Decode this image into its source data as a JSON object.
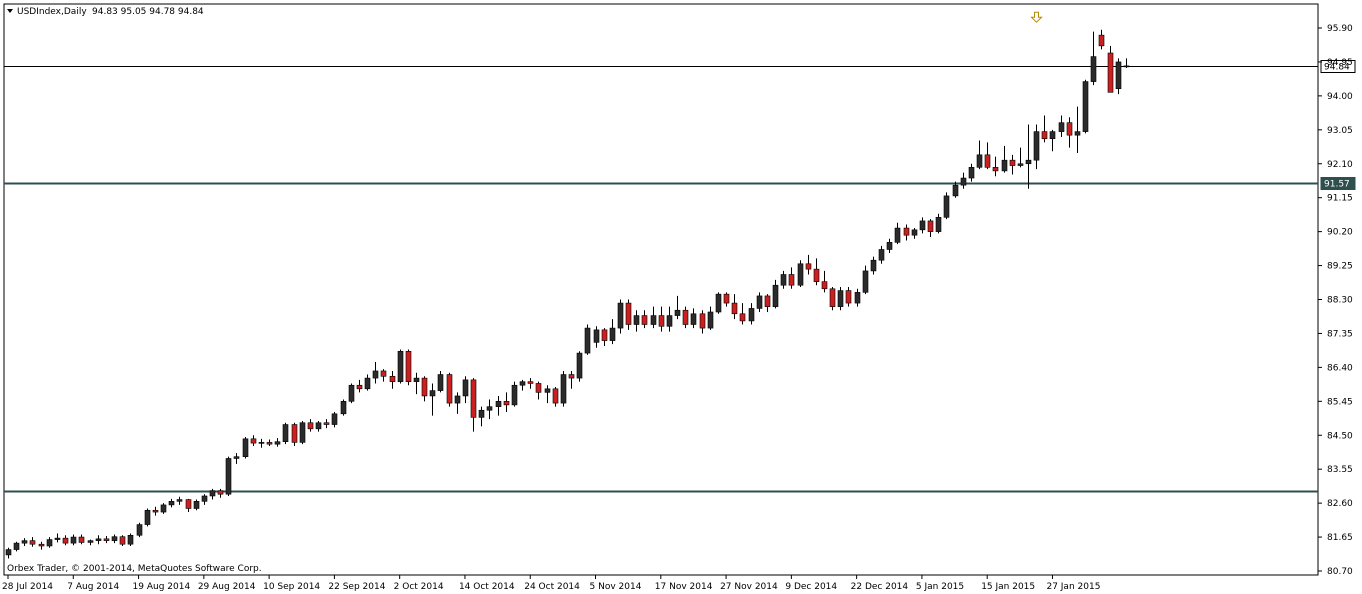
{
  "chart_data": {
    "type": "candlestick",
    "symbol_line": "USDIndex,Daily",
    "ohlc_header": "94.83 95.05 94.78 94.84",
    "copyright": "Orbex Trader, © 2001-2014, MetaQuotes Software Corp.",
    "y_axis": {
      "min": 80.7,
      "max": 96.2,
      "ticks": [
        "95.90",
        "94.95",
        "94.00",
        "93.05",
        "92.10",
        "91.15",
        "90.20",
        "89.25",
        "88.30",
        "87.35",
        "86.40",
        "85.45",
        "84.50",
        "83.55",
        "82.60",
        "81.65",
        "80.70"
      ]
    },
    "x_axis": {
      "labels": [
        {
          "label": "28 Jul 2014",
          "index": 0
        },
        {
          "label": "7 Aug 2014",
          "index": 8
        },
        {
          "label": "19 Aug 2014",
          "index": 16
        },
        {
          "label": "29 Aug 2014",
          "index": 24
        },
        {
          "label": "10 Sep 2014",
          "index": 32
        },
        {
          "label": "22 Sep 2014",
          "index": 40
        },
        {
          "label": "2 Oct 2014",
          "index": 48
        },
        {
          "label": "14 Oct 2014",
          "index": 56
        },
        {
          "label": "24 Oct 2014",
          "index": 64
        },
        {
          "label": "5 Nov 2014",
          "index": 72
        },
        {
          "label": "17 Nov 2014",
          "index": 80
        },
        {
          "label": "27 Nov 2014",
          "index": 88
        },
        {
          "label": "9 Dec 2014",
          "index": 96
        },
        {
          "label": "22 Dec 2014",
          "index": 104
        },
        {
          "label": "5 Jan 2015",
          "index": 112
        },
        {
          "label": "15 Jan 2015",
          "index": 120
        },
        {
          "label": "27 Jan 2015",
          "index": 128
        }
      ]
    },
    "horizontal_lines": [
      {
        "value": 94.84,
        "label": "94.84",
        "label_bg": "#ffffff",
        "label_fg": "#000000",
        "style": "thin"
      },
      {
        "value": 91.57,
        "label": "91.57",
        "label_bg": "#2f4f4f",
        "label_fg": "#ffffff",
        "style": "thick"
      },
      {
        "value": 82.93,
        "label": "",
        "style": "thick"
      }
    ],
    "arrow_marker": {
      "index": 126,
      "above_price": 95.95
    },
    "colors": {
      "bull": "#2b2b2b",
      "bear": "#cc1f1f",
      "wick": "#000000",
      "thin_line": "#000000",
      "thick_line": "#2f4f4f"
    },
    "candles": [
      [
        81.15,
        81.35,
        81.05,
        81.3
      ],
      [
        81.3,
        81.52,
        81.25,
        81.48
      ],
      [
        81.48,
        81.62,
        81.4,
        81.55
      ],
      [
        81.55,
        81.65,
        81.38,
        81.45
      ],
      [
        81.45,
        81.52,
        81.3,
        81.4
      ],
      [
        81.4,
        81.65,
        81.35,
        81.58
      ],
      [
        81.58,
        81.75,
        81.5,
        81.62
      ],
      [
        81.62,
        81.7,
        81.42,
        81.48
      ],
      [
        81.48,
        81.72,
        81.42,
        81.65
      ],
      [
        81.65,
        81.72,
        81.45,
        81.5
      ],
      [
        81.5,
        81.58,
        81.42,
        81.55
      ],
      [
        81.55,
        81.7,
        81.45,
        81.6
      ],
      [
        81.6,
        81.68,
        81.48,
        81.55
      ],
      [
        81.55,
        81.72,
        81.48,
        81.66
      ],
      [
        81.66,
        81.7,
        81.4,
        81.45
      ],
      [
        81.45,
        81.75,
        81.4,
        81.7
      ],
      [
        81.7,
        82.05,
        81.65,
        82.0
      ],
      [
        82.0,
        82.45,
        81.95,
        82.4
      ],
      [
        82.4,
        82.5,
        82.25,
        82.35
      ],
      [
        82.35,
        82.6,
        82.3,
        82.55
      ],
      [
        82.55,
        82.72,
        82.48,
        82.65
      ],
      [
        82.65,
        82.78,
        82.55,
        82.7
      ],
      [
        82.7,
        82.72,
        82.35,
        82.45
      ],
      [
        82.45,
        82.7,
        82.4,
        82.65
      ],
      [
        82.65,
        82.85,
        82.55,
        82.8
      ],
      [
        82.8,
        83.0,
        82.7,
        82.95
      ],
      [
        82.95,
        83.0,
        82.75,
        82.85
      ],
      [
        82.85,
        83.9,
        82.8,
        83.85
      ],
      [
        83.85,
        84.0,
        83.7,
        83.9
      ],
      [
        83.9,
        84.45,
        83.85,
        84.4
      ],
      [
        84.4,
        84.5,
        84.2,
        84.28
      ],
      [
        84.28,
        84.4,
        84.15,
        84.3
      ],
      [
        84.3,
        84.38,
        84.2,
        84.25
      ],
      [
        84.25,
        84.42,
        84.18,
        84.32
      ],
      [
        84.32,
        84.85,
        84.25,
        84.8
      ],
      [
        84.8,
        84.85,
        84.2,
        84.3
      ],
      [
        84.3,
        84.9,
        84.25,
        84.85
      ],
      [
        84.85,
        84.95,
        84.6,
        84.68
      ],
      [
        84.68,
        84.9,
        84.6,
        84.85
      ],
      [
        84.85,
        84.95,
        84.7,
        84.8
      ],
      [
        84.8,
        85.15,
        84.72,
        85.1
      ],
      [
        85.1,
        85.5,
        85.05,
        85.45
      ],
      [
        85.45,
        85.95,
        85.4,
        85.9
      ],
      [
        85.9,
        86.05,
        85.7,
        85.8
      ],
      [
        85.8,
        86.2,
        85.75,
        86.1
      ],
      [
        86.1,
        86.55,
        85.95,
        86.3
      ],
      [
        86.3,
        86.35,
        86.0,
        86.15
      ],
      [
        86.15,
        86.3,
        85.8,
        86.0
      ],
      [
        86.0,
        86.9,
        85.95,
        86.85
      ],
      [
        86.85,
        86.9,
        85.9,
        86.0
      ],
      [
        86.0,
        86.25,
        85.65,
        86.1
      ],
      [
        86.1,
        86.15,
        85.45,
        85.6
      ],
      [
        85.6,
        85.95,
        85.05,
        85.75
      ],
      [
        85.75,
        86.3,
        85.7,
        86.2
      ],
      [
        86.2,
        86.25,
        85.3,
        85.4
      ],
      [
        85.4,
        85.7,
        85.1,
        85.6
      ],
      [
        85.6,
        86.15,
        85.4,
        86.05
      ],
      [
        86.05,
        86.1,
        84.6,
        85.0
      ],
      [
        85.0,
        85.3,
        84.75,
        85.2
      ],
      [
        85.2,
        85.5,
        84.95,
        85.3
      ],
      [
        85.3,
        85.6,
        85.05,
        85.45
      ],
      [
        85.45,
        85.7,
        85.15,
        85.35
      ],
      [
        85.35,
        86.0,
        85.3,
        85.9
      ],
      [
        85.9,
        86.05,
        85.75,
        86.0
      ],
      [
        86.0,
        86.1,
        85.8,
        85.95
      ],
      [
        85.95,
        86.0,
        85.5,
        85.7
      ],
      [
        85.7,
        85.9,
        85.4,
        85.8
      ],
      [
        85.8,
        85.85,
        85.3,
        85.4
      ],
      [
        85.4,
        86.3,
        85.3,
        86.2
      ],
      [
        86.2,
        86.3,
        85.8,
        86.1
      ],
      [
        86.1,
        86.85,
        86.0,
        86.8
      ],
      [
        86.8,
        87.6,
        86.75,
        87.5
      ],
      [
        87.1,
        87.55,
        86.95,
        87.45
      ],
      [
        87.45,
        87.5,
        87.0,
        87.15
      ],
      [
        87.15,
        87.75,
        87.05,
        87.5
      ],
      [
        87.5,
        88.3,
        87.35,
        88.2
      ],
      [
        88.2,
        88.3,
        87.45,
        87.6
      ],
      [
        87.6,
        88.0,
        87.4,
        87.85
      ],
      [
        87.85,
        88.0,
        87.5,
        87.6
      ],
      [
        87.6,
        88.1,
        87.5,
        87.85
      ],
      [
        87.85,
        88.1,
        87.4,
        87.55
      ],
      [
        87.55,
        88.1,
        87.4,
        87.85
      ],
      [
        87.85,
        88.4,
        87.75,
        88.0
      ],
      [
        88.0,
        88.1,
        87.5,
        87.6
      ],
      [
        87.6,
        88.05,
        87.5,
        87.9
      ],
      [
        87.9,
        88.0,
        87.35,
        87.5
      ],
      [
        87.5,
        88.1,
        87.45,
        87.95
      ],
      [
        87.95,
        88.5,
        87.9,
        88.45
      ],
      [
        88.45,
        88.5,
        88.1,
        88.2
      ],
      [
        88.2,
        88.45,
        87.75,
        87.9
      ],
      [
        87.9,
        88.2,
        87.6,
        87.7
      ],
      [
        87.7,
        88.2,
        87.6,
        88.05
      ],
      [
        88.05,
        88.5,
        87.95,
        88.4
      ],
      [
        88.4,
        88.45,
        87.95,
        88.1
      ],
      [
        88.1,
        88.85,
        88.05,
        88.7
      ],
      [
        88.7,
        89.1,
        88.6,
        89.0
      ],
      [
        89.0,
        89.2,
        88.6,
        88.7
      ],
      [
        88.7,
        89.4,
        88.65,
        89.3
      ],
      [
        89.3,
        89.55,
        89.0,
        89.15
      ],
      [
        89.15,
        89.45,
        88.7,
        88.8
      ],
      [
        88.8,
        89.1,
        88.5,
        88.6
      ],
      [
        88.6,
        88.65,
        88.0,
        88.1
      ],
      [
        88.1,
        88.65,
        88.0,
        88.55
      ],
      [
        88.55,
        88.65,
        88.1,
        88.2
      ],
      [
        88.2,
        88.6,
        88.1,
        88.5
      ],
      [
        88.5,
        89.25,
        88.45,
        89.1
      ],
      [
        89.1,
        89.5,
        89.0,
        89.4
      ],
      [
        89.4,
        89.8,
        89.3,
        89.7
      ],
      [
        89.7,
        90.0,
        89.6,
        89.9
      ],
      [
        89.9,
        90.45,
        89.85,
        90.3
      ],
      [
        90.3,
        90.4,
        89.95,
        90.1
      ],
      [
        90.1,
        90.3,
        90.0,
        90.25
      ],
      [
        90.25,
        90.6,
        90.15,
        90.5
      ],
      [
        90.5,
        90.55,
        90.05,
        90.2
      ],
      [
        90.2,
        90.7,
        90.15,
        90.6
      ],
      [
        90.6,
        91.3,
        90.55,
        91.2
      ],
      [
        91.2,
        91.6,
        91.15,
        91.5
      ],
      [
        91.5,
        91.85,
        91.4,
        91.7
      ],
      [
        91.7,
        92.1,
        91.6,
        92.0
      ],
      [
        92.0,
        92.75,
        91.95,
        92.35
      ],
      [
        92.35,
        92.7,
        91.95,
        92.0
      ],
      [
        92.0,
        92.3,
        91.75,
        91.9
      ],
      [
        91.9,
        92.6,
        91.85,
        92.2
      ],
      [
        92.2,
        92.35,
        91.8,
        92.05
      ],
      [
        92.05,
        92.55,
        92.0,
        92.1
      ],
      [
        92.1,
        93.2,
        91.4,
        92.2
      ],
      [
        92.2,
        93.2,
        91.95,
        93.0
      ],
      [
        93.0,
        93.45,
        92.7,
        92.8
      ],
      [
        92.8,
        93.05,
        92.45,
        93.0
      ],
      [
        93.0,
        93.45,
        92.85,
        93.25
      ],
      [
        93.25,
        93.4,
        92.55,
        92.9
      ],
      [
        92.9,
        93.7,
        92.4,
        93.0
      ],
      [
        93.0,
        94.45,
        92.95,
        94.4
      ],
      [
        94.4,
        95.8,
        94.3,
        95.1
      ],
      [
        95.7,
        95.85,
        95.3,
        95.4
      ],
      [
        95.2,
        95.4,
        94.1,
        94.1
      ],
      [
        94.2,
        95.05,
        94.05,
        94.95
      ],
      [
        94.83,
        95.05,
        94.78,
        94.84
      ]
    ]
  }
}
